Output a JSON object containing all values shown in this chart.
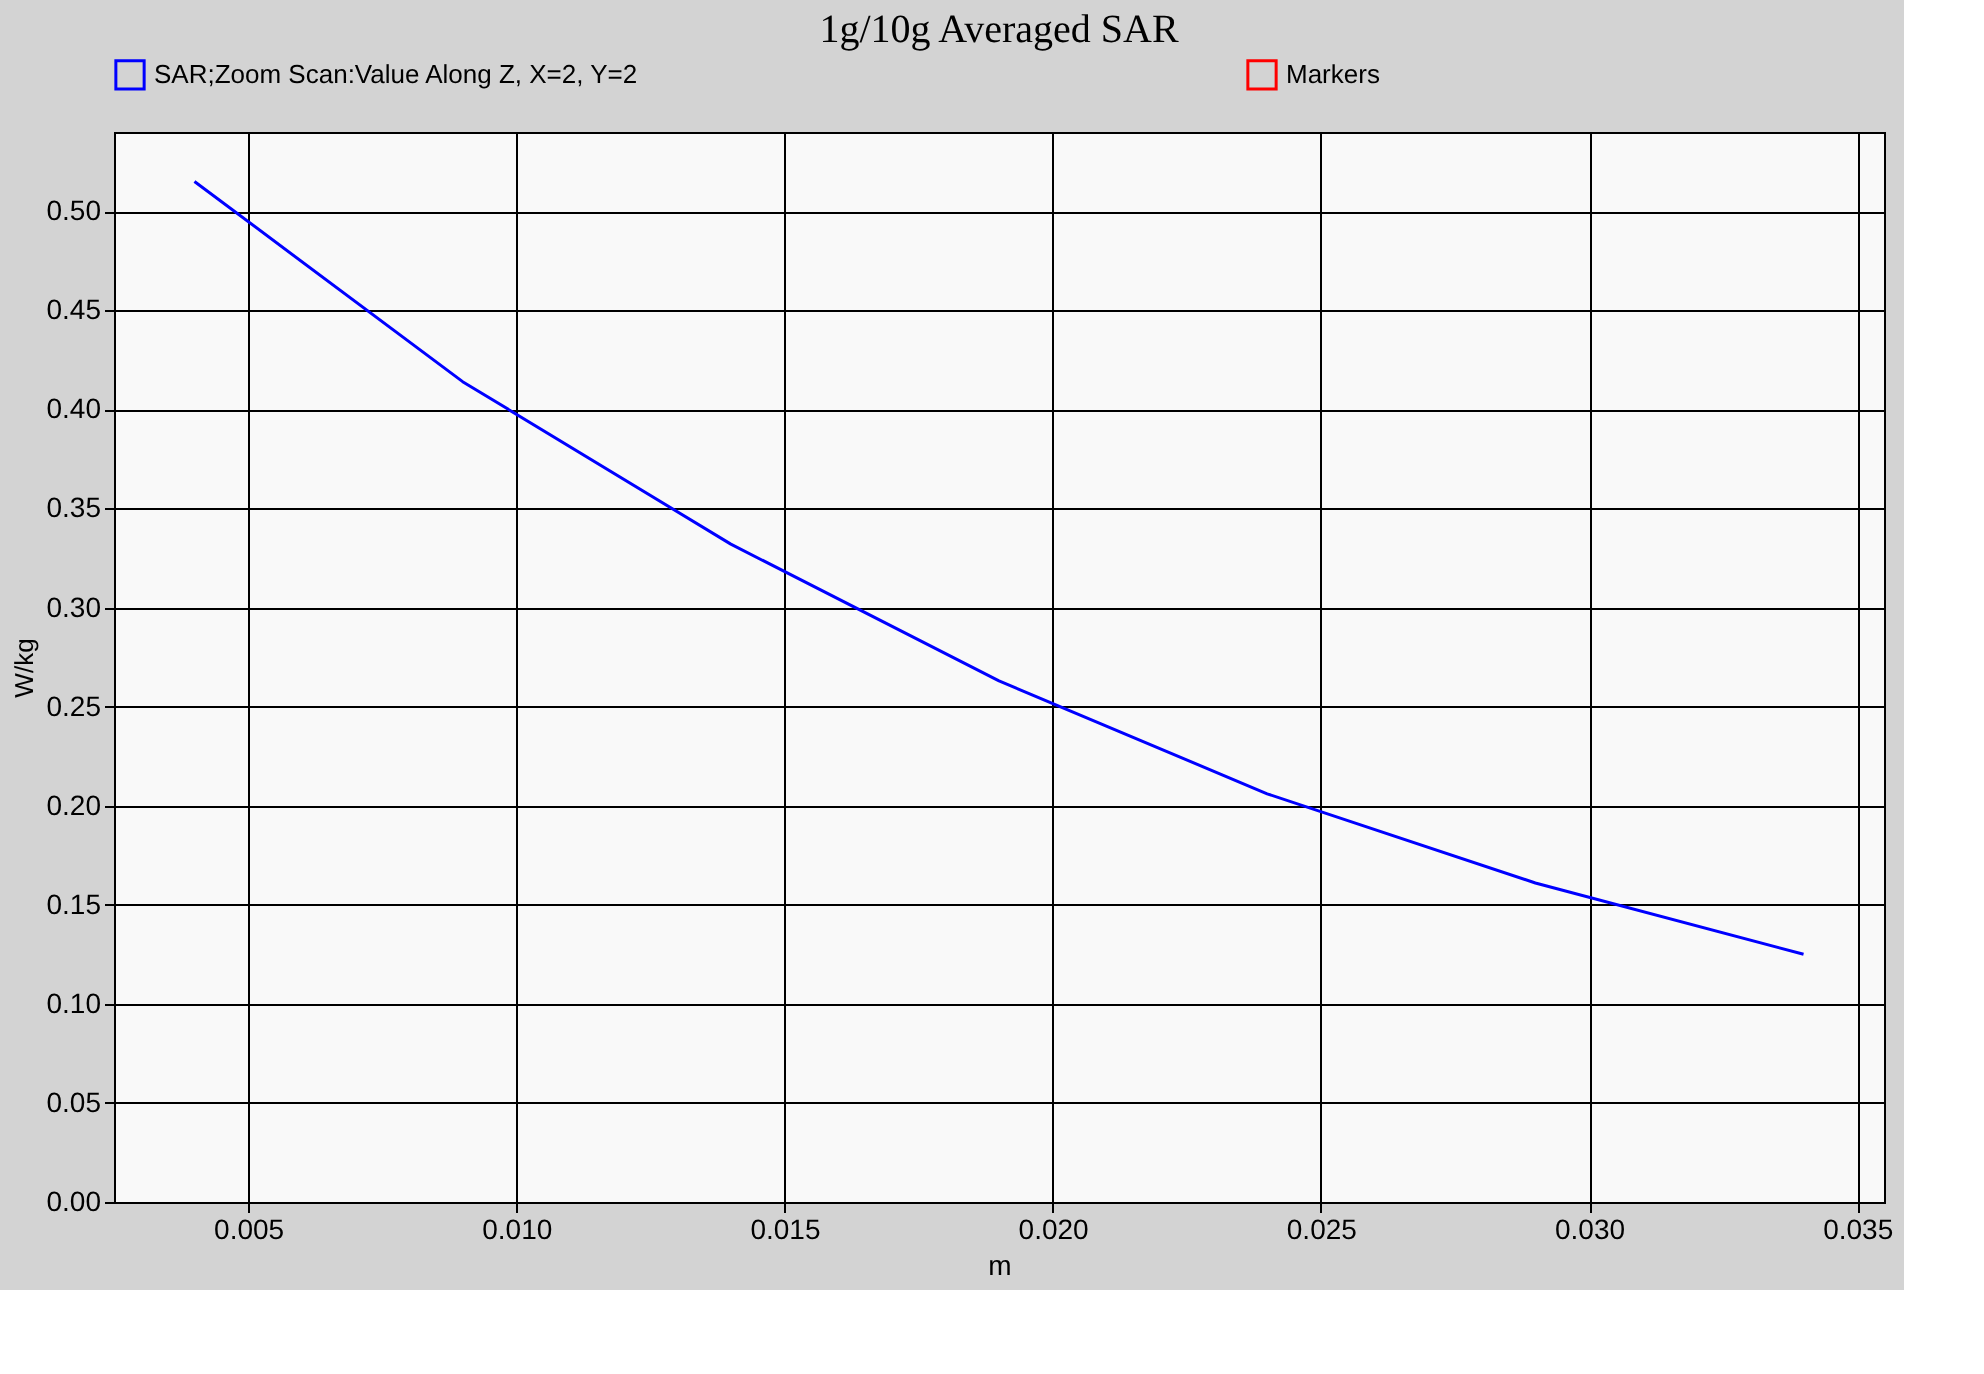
{
  "chart_data": {
    "type": "line",
    "title": "1g/10g Averaged SAR",
    "xlabel": "m",
    "ylabel": "W/kg",
    "x": [
      0.004,
      0.009,
      0.014,
      0.019,
      0.024,
      0.029,
      0.034
    ],
    "series": [
      {
        "name": "SAR;Zoom Scan:Value Along Z, X=2, Y=2",
        "color": "#0000ff",
        "values": [
          0.515,
          0.414,
          0.332,
          0.263,
          0.206,
          0.161,
          0.125
        ]
      },
      {
        "name": "Markers",
        "color": "#ff0000",
        "values": [
          null,
          null,
          null,
          null,
          null,
          null,
          null
        ]
      }
    ],
    "xlim": [
      0.0025,
      0.0355
    ],
    "xticks": [
      {
        "value": 0.005,
        "label": "0.005"
      },
      {
        "value": 0.01,
        "label": "0.010"
      },
      {
        "value": 0.015,
        "label": "0.015"
      },
      {
        "value": 0.02,
        "label": "0.020"
      },
      {
        "value": 0.025,
        "label": "0.025"
      },
      {
        "value": 0.03,
        "label": "0.030"
      },
      {
        "value": 0.035,
        "label": "0.035"
      }
    ],
    "ylim": [
      0,
      0.54
    ],
    "yticks": [
      {
        "value": 0,
        "label": "0.00"
      },
      {
        "value": 0.05,
        "label": "0.05"
      },
      {
        "value": 0.1,
        "label": "0.10"
      },
      {
        "value": 0.15,
        "label": "0.15"
      },
      {
        "value": 0.2,
        "label": "0.20"
      },
      {
        "value": 0.25,
        "label": "0.25"
      },
      {
        "value": 0.3,
        "label": "0.30"
      },
      {
        "value": 0.35,
        "label": "0.35"
      },
      {
        "value": 0.4,
        "label": "0.40"
      },
      {
        "value": 0.45,
        "label": "0.45"
      },
      {
        "value": 0.5,
        "label": "0.50"
      }
    ],
    "grid": true,
    "legend": "top",
    "marker": "none",
    "line_style": "solid"
  }
}
